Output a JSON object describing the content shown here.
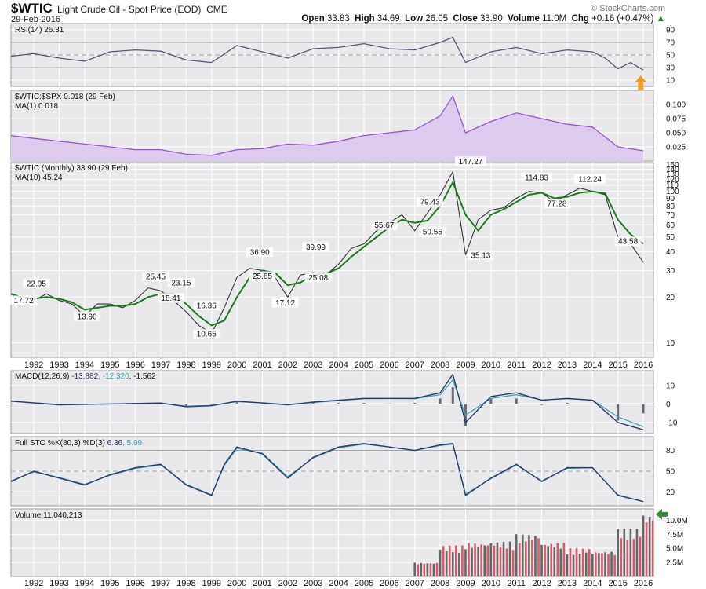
{
  "header": {
    "symbol": "$WTIC",
    "name": "Light Crude Oil - Spot Price (EOD)",
    "exchange": "CME",
    "date": "29-Feb-2016",
    "copyright": "© StockCharts.com",
    "open_label": "Open",
    "open": "33.83",
    "high_label": "High",
    "high": "34.69",
    "low_label": "Low",
    "low": "26.05",
    "close_label": "Close",
    "close": "33.90",
    "volume_label": "Volume",
    "volume": "11.0M",
    "chg_label": "Chg",
    "chg": "+0.16 (+0.47%)"
  },
  "colors": {
    "panel_bg": "#e9e9eb",
    "price_line": "#333333",
    "ma_line": "#1f7a1f",
    "ratio_fill": "#dccbec",
    "ratio_line": "#9b55c9",
    "rsi_line": "#4d5a7a",
    "macd_line": "#2b3a6b",
    "signal_line": "#3aa0b0",
    "hist": "#6a6a7a",
    "vol_up": "#d65a6a",
    "vol_down": "#666666",
    "arrow_orange": "#f39a22",
    "arrow_green": "#3a8a3a"
  },
  "chart_data": [
    {
      "type": "line",
      "panel": "rsi",
      "legend": "RSI(14) 26.31",
      "ylim": [
        0,
        100
      ],
      "yticks": [
        10,
        30,
        50,
        70,
        90
      ],
      "hlines": [
        30,
        70
      ],
      "x": [
        1991.1,
        1992,
        1993,
        1994,
        1995,
        1996,
        1997,
        1998,
        1999,
        2000,
        2001,
        2002,
        2003,
        2004,
        2005,
        2006,
        2007,
        2008,
        2008.5,
        2009,
        2010,
        2011,
        2012,
        2013,
        2014,
        2014.5,
        2015,
        2015.5,
        2016
      ],
      "values": [
        48,
        52,
        45,
        40,
        55,
        58,
        56,
        42,
        38,
        65,
        55,
        45,
        60,
        62,
        68,
        60,
        58,
        70,
        78,
        38,
        55,
        62,
        52,
        58,
        55,
        45,
        28,
        38,
        26
      ]
    },
    {
      "type": "area",
      "panel": "ratio",
      "legend": "$WTIC:$SPX 0.018 (29 Feb)",
      "legend2": "MA(1) 0.018",
      "ylim": [
        0,
        0.125
      ],
      "yticks": [
        0.025,
        0.05,
        0.075,
        0.1
      ],
      "ytick_labels": [
        "0.025",
        "0.050",
        "0.075",
        "0.100"
      ],
      "x": [
        1991.1,
        1992,
        1993,
        1994,
        1995,
        1996,
        1997,
        1998,
        1999,
        2000,
        2001,
        2002,
        2003,
        2004,
        2005,
        2006,
        2007,
        2008,
        2008.5,
        2009,
        2010,
        2011,
        2012,
        2013,
        2014,
        2015,
        2016
      ],
      "values": [
        0.045,
        0.04,
        0.035,
        0.03,
        0.025,
        0.02,
        0.02,
        0.012,
        0.01,
        0.02,
        0.022,
        0.03,
        0.028,
        0.035,
        0.045,
        0.05,
        0.055,
        0.08,
        0.115,
        0.05,
        0.07,
        0.085,
        0.075,
        0.065,
        0.06,
        0.025,
        0.018
      ]
    },
    {
      "type": "line",
      "panel": "price",
      "scale": "log",
      "legend": "$WTIC (Monthly) 33.90 (29 Feb)",
      "legend2": "MA(10) 45.24",
      "ylim": [
        8,
        155
      ],
      "yticks": [
        10,
        20,
        30,
        40,
        50,
        60,
        70,
        80,
        90,
        100,
        110,
        120,
        130,
        140,
        150
      ],
      "x": [
        1991.1,
        1991.5,
        1992.0,
        1992.5,
        1993.0,
        1993.5,
        1994.0,
        1994.5,
        1995.0,
        1995.5,
        1996.0,
        1996.5,
        1997.0,
        1997.5,
        1998.0,
        1998.5,
        1999.0,
        1999.5,
        2000.0,
        2000.5,
        2001.0,
        2001.5,
        2002.0,
        2002.5,
        2003.0,
        2003.5,
        2004.0,
        2004.5,
        2005.0,
        2005.5,
        2006.0,
        2006.5,
        2007.0,
        2007.5,
        2008.0,
        2008.5,
        2009.0,
        2009.5,
        2010.0,
        2010.5,
        2011.0,
        2011.5,
        2012.0,
        2012.5,
        2013.0,
        2013.5,
        2014.0,
        2014.5,
        2015.0,
        2015.5,
        2016.0
      ],
      "values": [
        21,
        20,
        19,
        21,
        19,
        18,
        15,
        18,
        18,
        17,
        19,
        23,
        22,
        19,
        16,
        13,
        11.5,
        17,
        27,
        31,
        30,
        27,
        20,
        28,
        29,
        28,
        33,
        42,
        45,
        55,
        62,
        70,
        55,
        72,
        95,
        135,
        38,
        65,
        75,
        78,
        90,
        100,
        98,
        85,
        95,
        105,
        100,
        95,
        50,
        45,
        34
      ],
      "ma_values": [
        21,
        20,
        19.5,
        20,
        19.5,
        18.5,
        16.5,
        17,
        17.5,
        17.5,
        18,
        20,
        21,
        21,
        18,
        15,
        13,
        14,
        20,
        27,
        30,
        29,
        24,
        25,
        28,
        28.5,
        31,
        37,
        43,
        50,
        58,
        65,
        62,
        64,
        80,
        115,
        70,
        55,
        70,
        76,
        85,
        95,
        98,
        90,
        92,
        98,
        100,
        97,
        65,
        52,
        45
      ]
    },
    {
      "type": "line",
      "panel": "macd",
      "legend": "MACD(12,26,9)",
      "legend_values": [
        "-13.882",
        "-12.320",
        "-1.562"
      ],
      "ylim": [
        -16,
        18
      ],
      "yticks": [
        -10,
        0,
        10
      ],
      "x": [
        1991.1,
        1993,
        1995,
        1997,
        1998,
        1999,
        2000,
        2001,
        2002,
        2003,
        2004,
        2005,
        2006,
        2007,
        2008,
        2008.5,
        2009,
        2010,
        2011,
        2012,
        2013,
        2014,
        2015,
        2016
      ],
      "macd": [
        1.5,
        -0.5,
        0,
        0.5,
        -1.5,
        -1,
        1.5,
        0.5,
        -0.5,
        1,
        2,
        3,
        3,
        3,
        6,
        16,
        -10,
        4,
        6,
        2,
        3,
        2,
        -10,
        -14
      ],
      "signal": [
        1.5,
        -0.3,
        0,
        0.5,
        -1.2,
        -0.8,
        1.2,
        0.6,
        -0.3,
        0.8,
        1.8,
        2.8,
        2.9,
        2.8,
        5,
        13,
        -6,
        3,
        5,
        2.2,
        2.8,
        2,
        -7,
        -12.3
      ]
    },
    {
      "type": "line",
      "panel": "sto",
      "legend": "Full STO %K(80,3) %D(3)",
      "legend_values": [
        "6.36",
        "5.99"
      ],
      "ylim": [
        0,
        100
      ],
      "yticks": [
        20,
        50,
        80
      ],
      "hlines": [
        20,
        50,
        80
      ],
      "x": [
        1991.1,
        1992,
        1993,
        1994,
        1995,
        1996,
        1997,
        1998,
        1999,
        1999.5,
        2000,
        2001,
        2002,
        2003,
        2004,
        2005,
        2006,
        2007,
        2008,
        2008.5,
        2009,
        2010,
        2011,
        2012,
        2013,
        2014,
        2015,
        2016
      ],
      "k": [
        35,
        50,
        40,
        30,
        45,
        55,
        60,
        30,
        15,
        60,
        85,
        75,
        40,
        70,
        85,
        90,
        85,
        80,
        88,
        90,
        15,
        40,
        60,
        35,
        55,
        55,
        15,
        6
      ],
      "d": [
        36,
        49,
        41,
        31,
        44,
        54,
        59,
        31,
        16,
        58,
        83,
        76,
        42,
        69,
        84,
        89,
        85,
        80,
        87,
        89,
        17,
        39,
        59,
        36,
        54,
        55,
        16,
        6
      ]
    },
    {
      "type": "bar",
      "panel": "volume",
      "legend": "Volume 11,040,213",
      "ylim": [
        0,
        12
      ],
      "yticks": [
        2.5,
        5.0,
        7.5,
        10.0
      ],
      "ytick_labels": [
        "2.5M",
        "5.0M",
        "7.5M",
        "10.0M"
      ],
      "x": [
        2007,
        2008,
        2009,
        2010,
        2011,
        2012,
        2013,
        2014,
        2015,
        2016
      ],
      "values": [
        2.5,
        5.5,
        6.0,
        6.2,
        7.5,
        6.0,
        5.0,
        4.5,
        8.5,
        11.04
      ]
    },
    {
      "type": "annotations",
      "panel": "price",
      "labels": [
        {
          "x": 1992.1,
          "value": 22.95,
          "text": "22.95"
        },
        {
          "x": 1991.6,
          "value": 17.72,
          "text": "17.72"
        },
        {
          "x": 1994.1,
          "value": 13.9,
          "text": "13.90"
        },
        {
          "x": 1996.8,
          "value": 25.45,
          "text": "25.45"
        },
        {
          "x": 1997.8,
          "value": 23.15,
          "text": "23.15"
        },
        {
          "x": 1997.4,
          "value": 18.41,
          "text": "18.41"
        },
        {
          "x": 1998.8,
          "value": 16.36,
          "text": "16.36"
        },
        {
          "x": 1998.8,
          "value": 10.65,
          "text": "10.65"
        },
        {
          "x": 2000.9,
          "value": 36.9,
          "text": "36.90"
        },
        {
          "x": 2001.0,
          "value": 25.65,
          "text": "25.65"
        },
        {
          "x": 2001.9,
          "value": 17.12,
          "text": "17.12"
        },
        {
          "x": 2003.1,
          "value": 39.99,
          "text": "39.99"
        },
        {
          "x": 2003.2,
          "value": 25.08,
          "text": "25.08"
        },
        {
          "x": 2005.8,
          "value": 55.67,
          "text": "55.67"
        },
        {
          "x": 2007.6,
          "value": 79.43,
          "text": "79.43"
        },
        {
          "x": 2007.7,
          "value": 50.55,
          "text": "50.55"
        },
        {
          "x": 2009.2,
          "value": 147.27,
          "text": "147.27"
        },
        {
          "x": 2009.6,
          "value": 35.13,
          "text": "35.13"
        },
        {
          "x": 2011.8,
          "value": 114.83,
          "text": "114.83"
        },
        {
          "x": 2012.6,
          "value": 77.28,
          "text": "77.28"
        },
        {
          "x": 2013.9,
          "value": 112.24,
          "text": "112.24"
        },
        {
          "x": 2015.4,
          "value": 43.58,
          "text": "43.58"
        }
      ]
    }
  ],
  "x_axis": {
    "xlim": [
      1991.1,
      2016.4
    ],
    "years": [
      "1992",
      "1993",
      "1994",
      "1995",
      "1996",
      "1997",
      "1998",
      "1999",
      "2000",
      "2001",
      "2002",
      "2003",
      "2004",
      "2005",
      "2006",
      "2007",
      "2008",
      "2009",
      "2010",
      "2011",
      "2012",
      "2013",
      "2014",
      "2015",
      "2016"
    ]
  }
}
